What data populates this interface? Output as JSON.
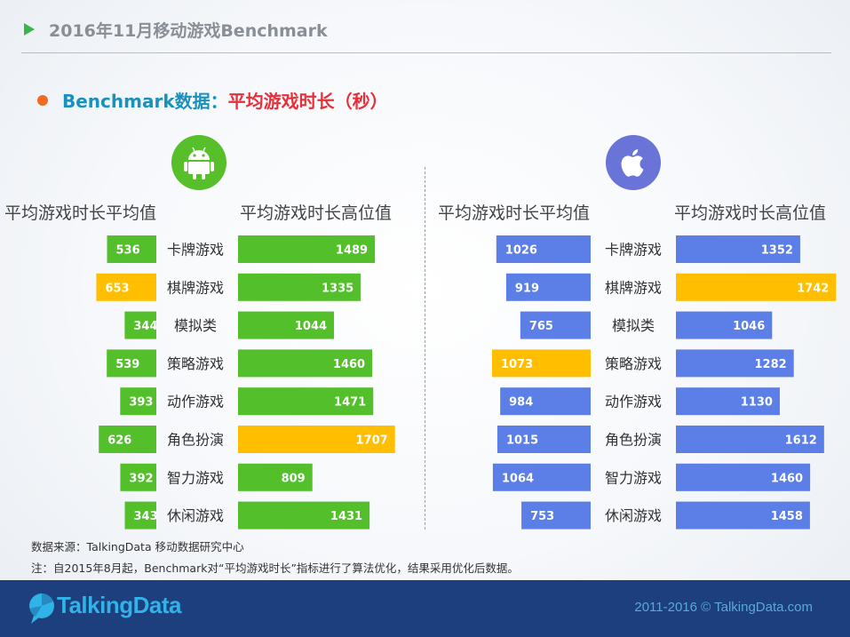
{
  "header": {
    "title": "2016年11月移动游戏Benchmark"
  },
  "subtitle": {
    "part1": "Benchmark数据：",
    "part2": "平均游戏时长（秒）"
  },
  "icons": {
    "android": "android-icon",
    "apple": "apple-icon"
  },
  "columns": {
    "android_avg": "平均游戏时长平均值",
    "android_high": "平均游戏时长高位值",
    "ios_avg": "平均游戏时长平均值",
    "ios_high": "平均游戏时长高位值"
  },
  "chart_data": {
    "type": "bar",
    "categories": [
      "卡牌游戏",
      "棋牌游戏",
      "模拟类",
      "策略游戏",
      "动作游戏",
      "角色扮演",
      "智力游戏",
      "休闲游戏"
    ],
    "series": [
      {
        "name": "平均游戏时长平均值",
        "platform": "Android",
        "direction": "left",
        "color": "#52bf2b",
        "highlight_color": "#ffbf00",
        "values": [
          536,
          653,
          344,
          539,
          393,
          626,
          392,
          343
        ],
        "highlight_index": 1
      },
      {
        "name": "平均游戏时长高位值",
        "platform": "Android",
        "direction": "right",
        "color": "#52bf2b",
        "highlight_color": "#ffbf00",
        "values": [
          1489,
          1335,
          1044,
          1460,
          1471,
          1707,
          809,
          1431
        ],
        "highlight_index": 5
      },
      {
        "name": "平均游戏时长平均值",
        "platform": "iOS",
        "direction": "left",
        "color": "#5b7fe6",
        "highlight_color": "#ffbf00",
        "values": [
          1026,
          919,
          765,
          1073,
          984,
          1015,
          1064,
          753
        ],
        "highlight_index": 3
      },
      {
        "name": "平均游戏时长高位值",
        "platform": "iOS",
        "direction": "right",
        "color": "#5b7fe6",
        "highlight_color": "#ffbf00",
        "values": [
          1352,
          1742,
          1046,
          1282,
          1130,
          1612,
          1460,
          1458
        ],
        "highlight_index": 1
      }
    ]
  },
  "notes": {
    "source": "数据来源：TalkingData 移动数据研究中心",
    "note": "注：自2015年8月起，Benchmark对“平均游戏时长”指标进行了算法优化，结果采用优化后数据。"
  },
  "footer": {
    "brand": "TalkingData",
    "copyright": "2011-2016 © TalkingData.com"
  }
}
